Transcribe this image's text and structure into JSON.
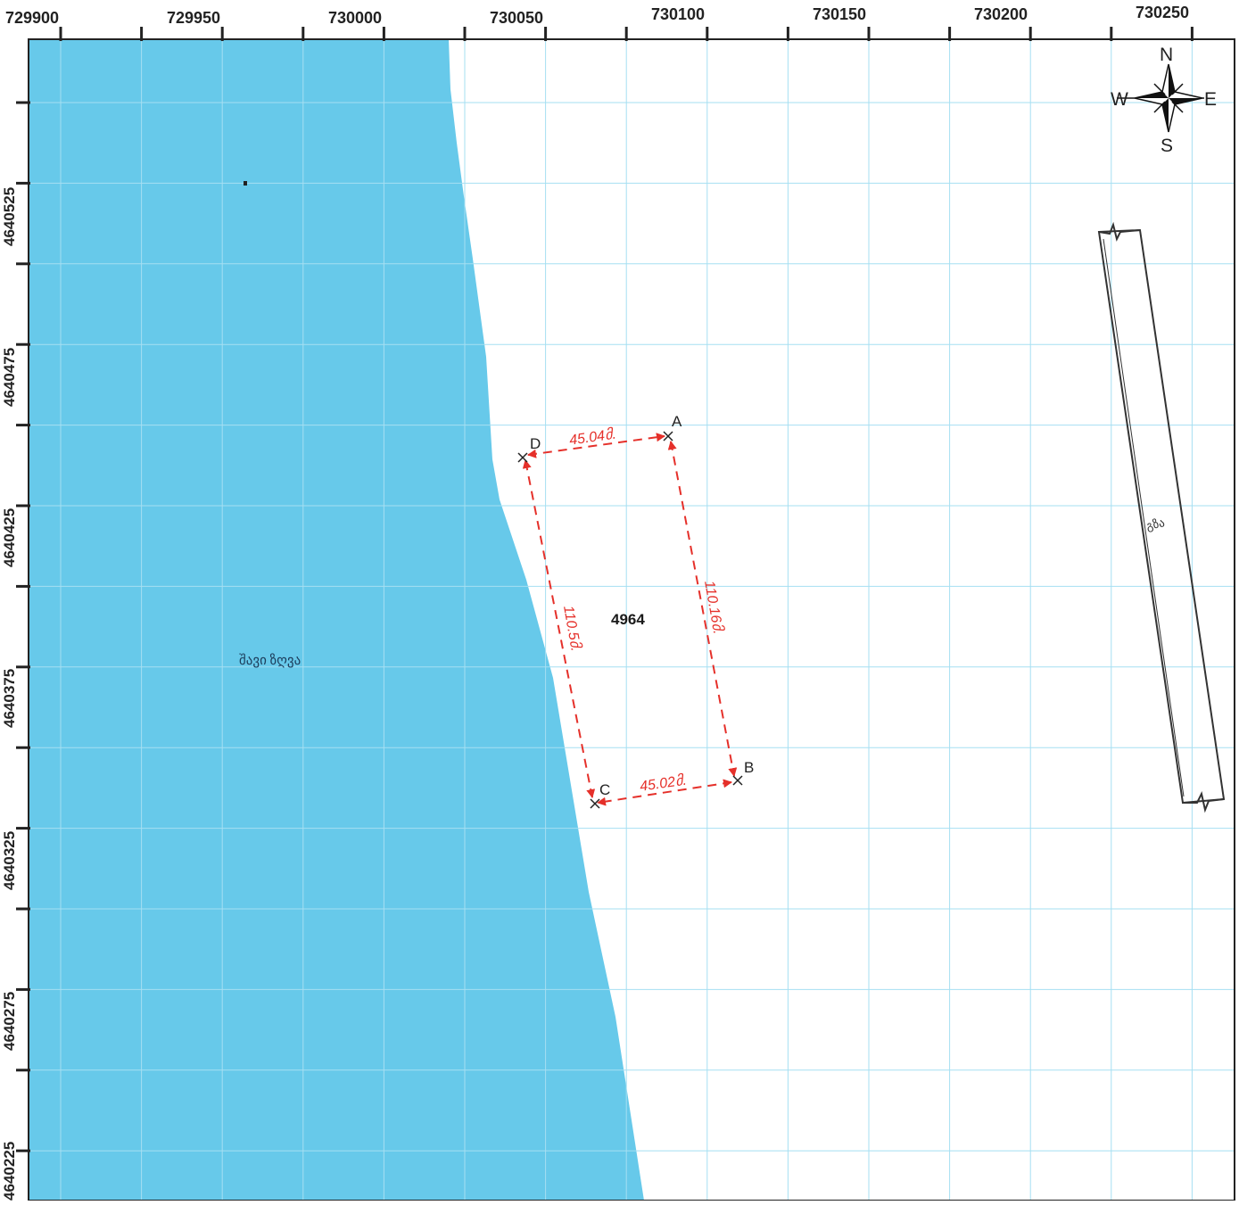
{
  "axes": {
    "x_ticks": [
      "729900",
      "729950",
      "730000",
      "730050",
      "730100",
      "730150",
      "730200",
      "730250"
    ],
    "y_ticks": [
      "4640525",
      "4640475",
      "4640425",
      "4640375",
      "4640325",
      "4640275",
      "4640225"
    ]
  },
  "compass": {
    "n": "N",
    "s": "S",
    "e": "E",
    "w": "W"
  },
  "labels": {
    "sea": "შავი ზღვა",
    "road": "გზა",
    "parcel_id": "4964"
  },
  "parcel": {
    "vertices": [
      "A",
      "B",
      "C",
      "D"
    ],
    "dimensions": {
      "da": "45.04მ.",
      "ab": "110.16მ.",
      "bc": "45.02მ.",
      "cd": "110.5მ."
    }
  },
  "colors": {
    "sea": "#67c9ea",
    "grid": "#a6dff2",
    "dimension": "#e5302a"
  }
}
